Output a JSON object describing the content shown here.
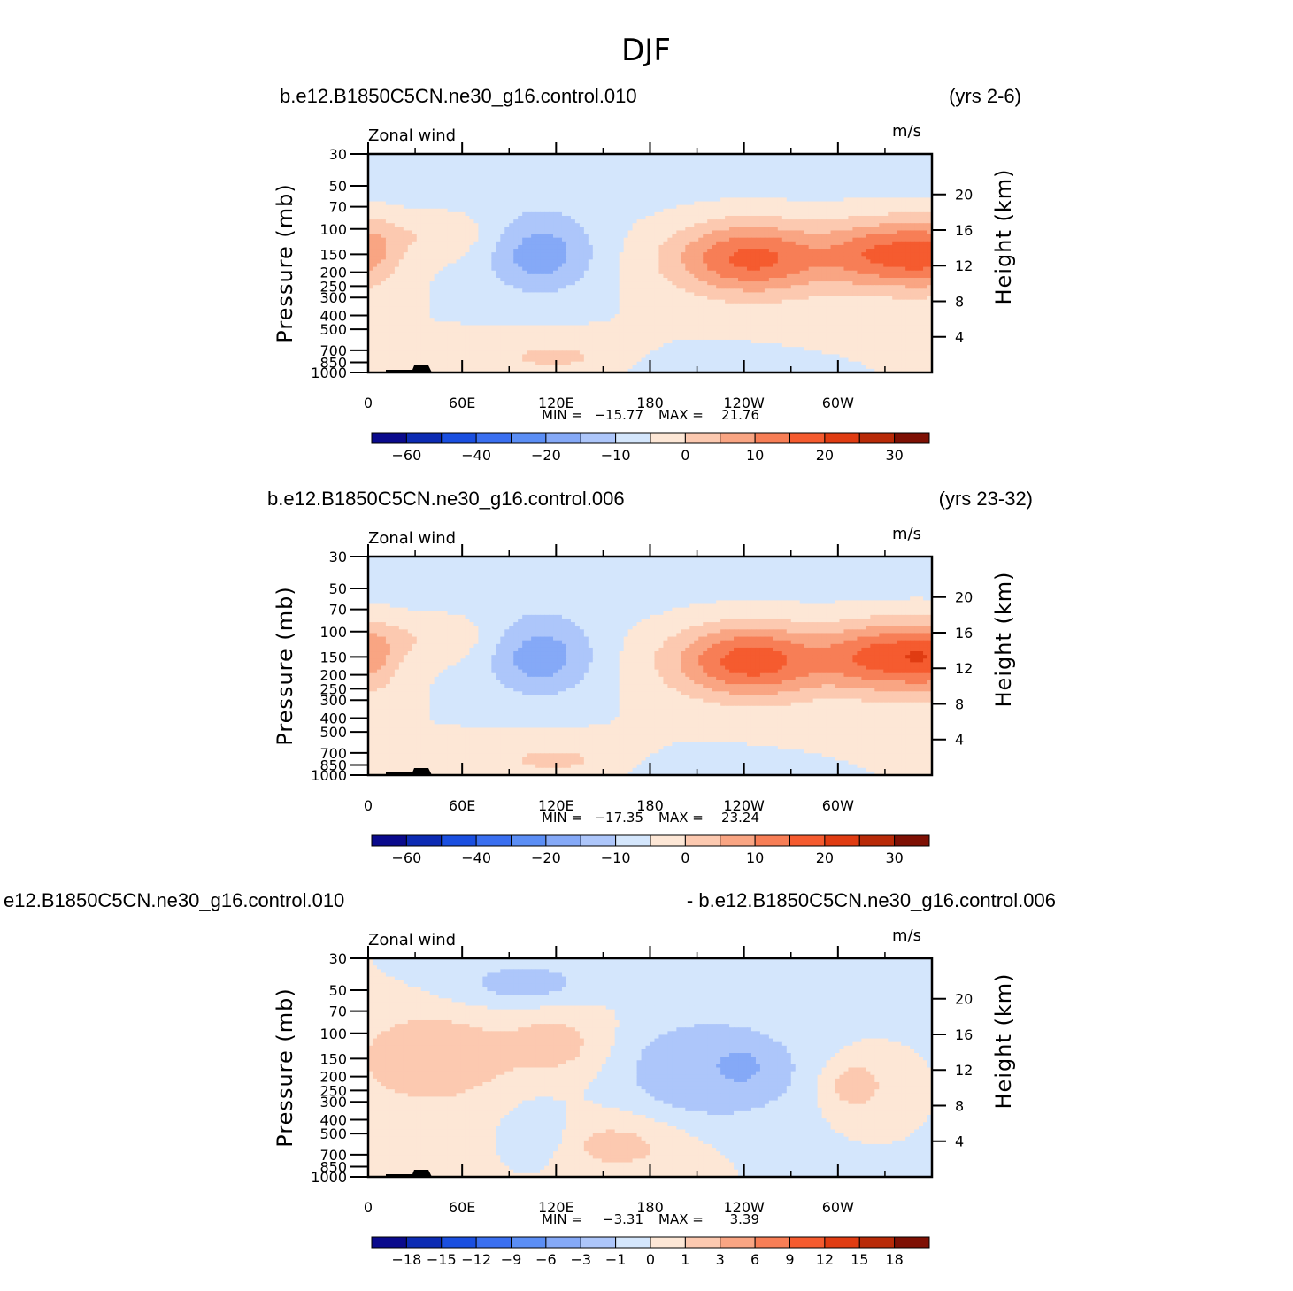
{
  "figure_title": "DJF",
  "chart_data": [
    {
      "type": "heatmap",
      "id": "p1",
      "case_left": "b.e12.B1850C5CN.ne30_g16.control.010",
      "case_right": "(yrs 2-6)",
      "left_string": "Zonal  wind",
      "units": "m/s",
      "ylabel_left": "Pressure  (mb)",
      "ylabel_right": "Height  (km)",
      "x_ticks": [
        "0",
        "60E",
        "120E",
        "180",
        "120W",
        "60W"
      ],
      "x_tick_lon": [
        0,
        60,
        120,
        180,
        240,
        300
      ],
      "xlim": [
        0,
        360
      ],
      "pressure_ticks": [
        "30",
        "50",
        "70",
        "100",
        "150",
        "200",
        "250",
        "300",
        "400",
        "500",
        "700",
        "850",
        "1000"
      ],
      "ylim_pressure": [
        30,
        1000
      ],
      "height_ticks": [
        "20",
        "16",
        "12",
        "8",
        "4"
      ],
      "stats_min_label": "MIN =",
      "stats_min": "−15.77",
      "stats_max_label": "MAX =",
      "stats_max": "21.76",
      "colorbar_labels": [
        "−60",
        "−40",
        "−20",
        "−10",
        "0",
        "10",
        "20",
        "30"
      ],
      "field": "mean",
      "max_value": 21.76
    },
    {
      "type": "heatmap",
      "id": "p2",
      "case_left": "b.e12.B1850C5CN.ne30_g16.control.006",
      "case_right": "(yrs 23-32)",
      "left_string": "Zonal  wind",
      "units": "m/s",
      "ylabel_left": "Pressure  (mb)",
      "ylabel_right": "Height  (km)",
      "x_ticks": [
        "0",
        "60E",
        "120E",
        "180",
        "120W",
        "60W"
      ],
      "x_tick_lon": [
        0,
        60,
        120,
        180,
        240,
        300
      ],
      "xlim": [
        0,
        360
      ],
      "pressure_ticks": [
        "30",
        "50",
        "70",
        "100",
        "150",
        "200",
        "250",
        "300",
        "400",
        "500",
        "700",
        "850",
        "1000"
      ],
      "ylim_pressure": [
        30,
        1000
      ],
      "height_ticks": [
        "20",
        "16",
        "12",
        "8",
        "4"
      ],
      "stats_min_label": "MIN =",
      "stats_min": "−17.35",
      "stats_max_label": "MAX =",
      "stats_max": "23.24",
      "colorbar_labels": [
        "−60",
        "−40",
        "−20",
        "−10",
        "0",
        "10",
        "20",
        "30"
      ],
      "field": "mean",
      "max_value": 23.24
    },
    {
      "type": "heatmap",
      "id": "p3",
      "case_left": "e12.B1850C5CN.ne30_g16.control.010",
      "case_right": "- b.e12.B1850C5CN.ne30_g16.control.006",
      "left_string": "Zonal  wind",
      "units": "m/s",
      "ylabel_left": "Pressure  (mb)",
      "ylabel_right": "Height  (km)",
      "x_ticks": [
        "0",
        "60E",
        "120E",
        "180",
        "120W",
        "60W"
      ],
      "x_tick_lon": [
        0,
        60,
        120,
        180,
        240,
        300
      ],
      "xlim": [
        0,
        360
      ],
      "pressure_ticks": [
        "30",
        "50",
        "70",
        "100",
        "150",
        "200",
        "250",
        "300",
        "400",
        "500",
        "700",
        "850",
        "1000"
      ],
      "ylim_pressure": [
        30,
        1000
      ],
      "height_ticks": [
        "20",
        "16",
        "12",
        "8",
        "4"
      ],
      "stats_min_label": "MIN =",
      "stats_min": "−3.31",
      "stats_max_label": "MAX =",
      "stats_max": "3.39",
      "colorbar_labels": [
        "−18",
        "−15",
        "−12",
        "−9",
        "−6",
        "−3",
        "−1",
        "0",
        "1",
        "3",
        "6",
        "9",
        "12",
        "15",
        "18"
      ],
      "field": "difference",
      "max_value": 3.39
    }
  ],
  "colors": {
    "palette": [
      "#0a0a8c",
      "#0c2bb3",
      "#1a4fe0",
      "#3a6ff0",
      "#5b8ef5",
      "#85a9f7",
      "#adc6fa",
      "#d4e6fc",
      "#fde7d6",
      "#fcc9b0",
      "#f9a583",
      "#f77e56",
      "#f55b2f",
      "#e03c12",
      "#b82a08",
      "#7e1004"
    ]
  }
}
